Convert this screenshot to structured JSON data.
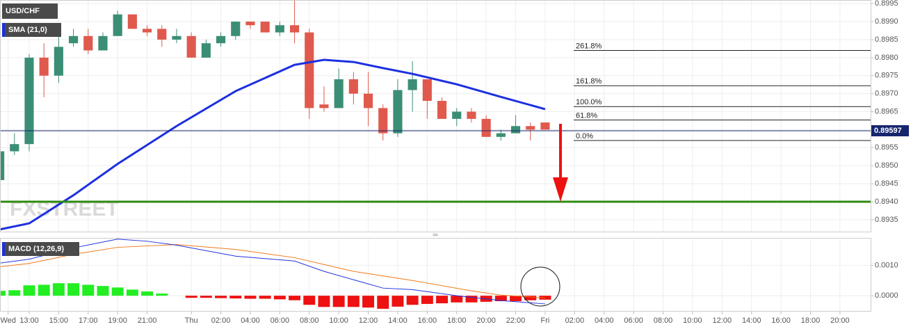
{
  "chart_data": [
    {
      "type": "candlestick",
      "title": "USD/CHF",
      "watermark": "FXSTREET",
      "xlim": [
        11.02,
        70.08
      ],
      "ylim": [
        0.89317,
        0.8996
      ],
      "yticks": [
        {
          "value": 0.8935,
          "label": "0.8935"
        },
        {
          "value": 0.894,
          "label": "0.8940"
        },
        {
          "value": 0.8945,
          "label": "0.8945"
        },
        {
          "value": 0.895,
          "label": "0.8950"
        },
        {
          "value": 0.8955,
          "label": "0.8955"
        },
        {
          "value": 0.896,
          "label": "0.8960"
        },
        {
          "value": 0.8965,
          "label": "0.8965"
        },
        {
          "value": 0.897,
          "label": "0.8970"
        },
        {
          "value": 0.8975,
          "label": "0.8975"
        },
        {
          "value": 0.898,
          "label": "0.8980"
        },
        {
          "value": 0.8985,
          "label": "0.8985"
        },
        {
          "value": 0.899,
          "label": "0.8990"
        },
        {
          "value": 0.8995,
          "label": "0.8995"
        }
      ],
      "grid": true,
      "up_color": "#3b8e76",
      "down_color": "#e0594d",
      "x": [
        11,
        12,
        13,
        14,
        15,
        16,
        17,
        18,
        19,
        20,
        21,
        22,
        23,
        24,
        25,
        26,
        27,
        28,
        29,
        30,
        31,
        32,
        33,
        34,
        35,
        36,
        37,
        38,
        39,
        40,
        41,
        42,
        43,
        44,
        45,
        46,
        47,
        48
      ],
      "open": [
        0.8946,
        0.8954,
        0.8956,
        0.898,
        0.8975,
        0.8984,
        0.8986,
        0.8982,
        0.8986,
        0.8992,
        0.8988,
        0.8988,
        0.8985,
        0.8986,
        0.898,
        0.8984,
        0.8986,
        0.899,
        0.899,
        0.8987,
        0.8989,
        0.8987,
        0.8967,
        0.8966,
        0.8974,
        0.897,
        0.8966,
        0.8959,
        0.8971,
        0.8974,
        0.8968,
        0.8963,
        0.8965,
        0.8963,
        0.8958,
        0.8959,
        0.8961,
        0.8962
      ],
      "high": [
        0.8957,
        0.8959,
        0.8981,
        0.8984,
        0.8986,
        0.8988,
        0.8988,
        0.8987,
        0.8993,
        0.8992,
        0.8989,
        0.8989,
        0.8988,
        0.8987,
        0.8985,
        0.8987,
        0.899,
        0.899,
        0.899,
        0.899,
        0.8996,
        0.8988,
        0.8972,
        0.8977,
        0.8976,
        0.8976,
        0.8967,
        0.8974,
        0.8979,
        0.8974,
        0.8969,
        0.8966,
        0.8966,
        0.8964,
        0.896,
        0.8964,
        0.8962,
        0.8962
      ],
      "low": [
        0.8945,
        0.8953,
        0.8954,
        0.8969,
        0.8973,
        0.8983,
        0.8981,
        0.8982,
        0.8986,
        0.8988,
        0.8986,
        0.8983,
        0.8984,
        0.898,
        0.898,
        0.8983,
        0.8985,
        0.8988,
        0.8987,
        0.8986,
        0.8984,
        0.8963,
        0.8965,
        0.8966,
        0.8967,
        0.8961,
        0.8957,
        0.8958,
        0.8965,
        0.8963,
        0.8963,
        0.8961,
        0.8962,
        0.8958,
        0.8957,
        0.8959,
        0.8957,
        0.896
      ],
      "close": [
        0.8954,
        0.8956,
        0.898,
        0.8975,
        0.8983,
        0.8986,
        0.8982,
        0.8986,
        0.8992,
        0.8988,
        0.8987,
        0.8985,
        0.8986,
        0.898,
        0.8984,
        0.8986,
        0.899,
        0.8989,
        0.8987,
        0.8989,
        0.8987,
        0.8966,
        0.8966,
        0.8974,
        0.897,
        0.8966,
        0.8959,
        0.8971,
        0.8974,
        0.8968,
        0.8963,
        0.8965,
        0.8963,
        0.8958,
        0.8959,
        0.8961,
        0.896,
        0.896
      ],
      "sma": {
        "name": "SMA (21,0)",
        "color": "#1d2fe0",
        "x": [
          11,
          13,
          16,
          19,
          23,
          27,
          31,
          33,
          35,
          37,
          39,
          42,
          45,
          48
        ],
        "values": [
          0.89323,
          0.8934,
          0.89418,
          0.89505,
          0.8961,
          0.89707,
          0.8978,
          0.89794,
          0.89788,
          0.89771,
          0.89755,
          0.89726,
          0.89691,
          0.89657
        ]
      },
      "current_price": 0.89597,
      "current_color": "#16256e",
      "support": 0.894,
      "support_color": "#2e8b10",
      "fib_levels": [
        {
          "label": "261.8%",
          "price": 0.8982
        },
        {
          "label": "161.8%",
          "price": 0.89722
        },
        {
          "label": "100.0%",
          "price": 0.89664
        },
        {
          "label": "61.8%",
          "price": 0.89627
        },
        {
          "label": "0.0%",
          "price": 0.8957
        }
      ]
    },
    {
      "type": "macd",
      "title": "MACD (12,26,9)",
      "xlim": [
        11.02,
        70.08
      ],
      "ylim": [
        -0.0005,
        0.0019
      ],
      "yticks": [
        {
          "value": 0,
          "label": "0.0000"
        },
        {
          "value": 0.001,
          "label": "0.0010"
        }
      ],
      "xticks": [
        {
          "value": 11.57,
          "label": "Wed"
        },
        {
          "value": 13,
          "label": "13:00"
        },
        {
          "value": 15,
          "label": "15:00"
        },
        {
          "value": 17,
          "label": "17:00"
        },
        {
          "value": 19,
          "label": "19:00"
        },
        {
          "value": 21,
          "label": "21:00"
        },
        {
          "value": 24,
          "label": "Thu"
        },
        {
          "value": 26,
          "label": "02:00"
        },
        {
          "value": 28,
          "label": "04:00"
        },
        {
          "value": 30,
          "label": "06:00"
        },
        {
          "value": 32,
          "label": "08:00"
        },
        {
          "value": 34,
          "label": "10:00"
        },
        {
          "value": 36,
          "label": "12:00"
        },
        {
          "value": 38,
          "label": "14:00"
        },
        {
          "value": 40,
          "label": "16:00"
        },
        {
          "value": 42,
          "label": "18:00"
        },
        {
          "value": 44,
          "label": "20:00"
        },
        {
          "value": 46,
          "label": "22:00"
        },
        {
          "value": 48,
          "label": "Fri"
        },
        {
          "value": 50,
          "label": "02:00"
        },
        {
          "value": 52,
          "label": "04:00"
        },
        {
          "value": 54,
          "label": "06:00"
        },
        {
          "value": 56,
          "label": "08:00"
        },
        {
          "value": 58,
          "label": "10:00"
        },
        {
          "value": 60,
          "label": "12:00"
        },
        {
          "value": 62,
          "label": "14:00"
        },
        {
          "value": 64,
          "label": "16:00"
        },
        {
          "value": 66,
          "label": "18:00"
        },
        {
          "value": 68,
          "label": "20:00"
        }
      ],
      "histogram": {
        "up_color": "#22ee22",
        "down_color": "#ee1111",
        "x": [
          11,
          12,
          13,
          14,
          15,
          16,
          17,
          18,
          19,
          20,
          21,
          22,
          23,
          24,
          25,
          26,
          27,
          28,
          29,
          30,
          31,
          32,
          33,
          34,
          35,
          36,
          37,
          38,
          39,
          40,
          41,
          42,
          43,
          44,
          45,
          46,
          47,
          48
        ],
        "values": [
          0.00016,
          0.00018,
          0.00034,
          0.00036,
          0.00041,
          0.00041,
          0.00036,
          0.00032,
          0.00027,
          0.0002,
          0.00014,
          7e-05,
          null,
          -7e-05,
          -7e-05,
          -8e-05,
          -9e-05,
          -0.0001,
          -0.0001,
          -0.00012,
          -0.00015,
          -0.0003,
          -0.00037,
          -0.00037,
          -0.00037,
          -0.00039,
          -0.00043,
          -0.00036,
          -0.0003,
          -0.00027,
          -0.00025,
          -0.00022,
          -0.00022,
          -0.0002,
          -0.00018,
          -0.00018,
          -0.00015,
          -0.00013
        ]
      },
      "macd_line": {
        "color": "#2233dd",
        "x": [
          11,
          13,
          16,
          19,
          21,
          23,
          27,
          31,
          33,
          37,
          39,
          42,
          45,
          48
        ],
        "values": [
          0.00107,
          0.0012,
          0.00157,
          0.00186,
          0.00179,
          0.00166,
          0.0013,
          0.00114,
          0.0008,
          0.00025,
          0.0002,
          0,
          -0.00016,
          -0.00027
        ]
      },
      "signal_line": {
        "color": "#f07a1a",
        "x": [
          11,
          13,
          16,
          19,
          23,
          27,
          31,
          35,
          39,
          43,
          45,
          48
        ],
        "values": [
          0.00095,
          0.00106,
          0.00136,
          0.00159,
          0.00168,
          0.00152,
          0.00125,
          0.0008,
          0.0005,
          0.00016,
          2e-05,
          -7e-05
        ]
      }
    }
  ]
}
